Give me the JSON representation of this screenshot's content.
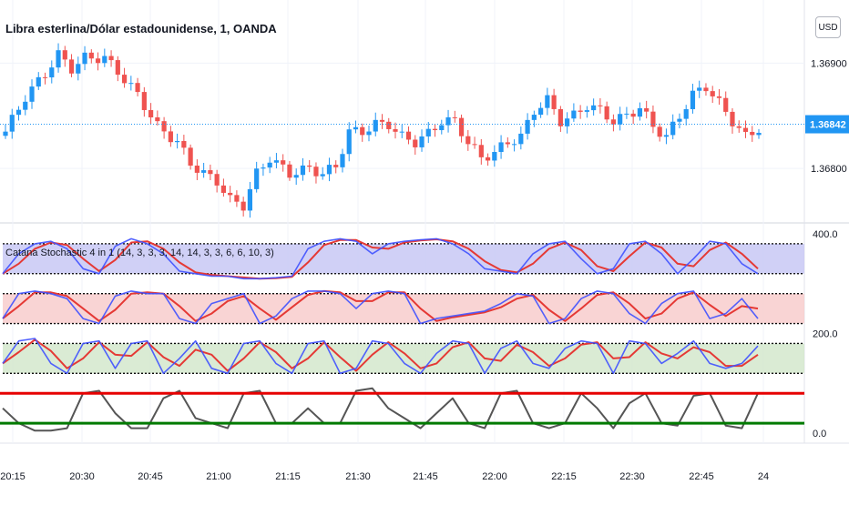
{
  "header": {
    "symbol_title": "Libra esterlina/Dólar estadounidense, 1, OANDA",
    "currency_button": "USD"
  },
  "indicator": {
    "title": "Catana Stochastic 4 in 1 (14, 3, 3, 3, 14, 14, 3, 3, 6, 6, 10, 3)"
  },
  "colors": {
    "up": "#2196f3",
    "down": "#ef5350",
    "last_price_bg": "#2196f3",
    "stoch_k": "#3f51ff",
    "stoch_d": "#e53935",
    "band_blue": "#c8c8f5",
    "band_red": "#f8cccc",
    "band_green": "#d3e8cc",
    "line_red": "#e60000",
    "line_green": "#007a00",
    "line_gray": "#555555"
  },
  "chart_data": [
    {
      "type": "candlestick",
      "title": "Libra esterlina/Dólar estadounidense, 1, OANDA",
      "x_ticks": [
        "20:15",
        "20:30",
        "20:45",
        "21:00",
        "21:15",
        "21:30",
        "21:45",
        "22:00",
        "22:15",
        "22:30",
        "22:45",
        "24"
      ],
      "y_ticks": [
        "1.36900",
        "1.36800"
      ],
      "ylim": [
        1.3675,
        1.3696
      ],
      "last_price": "1.36842",
      "close_path": [
        [
          0,
          1.36835
        ],
        [
          3,
          1.36868
        ],
        [
          6,
          1.3689
        ],
        [
          8,
          1.36908
        ],
        [
          10,
          1.36895
        ],
        [
          12,
          1.36905
        ],
        [
          15,
          1.36905
        ],
        [
          17,
          1.36892
        ],
        [
          20,
          1.3687
        ],
        [
          23,
          1.3684
        ],
        [
          26,
          1.36825
        ],
        [
          28,
          1.36805
        ],
        [
          30,
          1.36795
        ],
        [
          32,
          1.36788
        ],
        [
          34,
          1.3677
        ],
        [
          36,
          1.36765
        ],
        [
          38,
          1.36795
        ],
        [
          40,
          1.3681
        ],
        [
          43,
          1.36795
        ],
        [
          46,
          1.368
        ],
        [
          48,
          1.36795
        ],
        [
          50,
          1.36802
        ],
        [
          52,
          1.36835
        ],
        [
          54,
          1.36835
        ],
        [
          56,
          1.36842
        ],
        [
          58,
          1.36842
        ],
        [
          60,
          1.3683
        ],
        [
          62,
          1.36825
        ],
        [
          64,
          1.36833
        ],
        [
          66,
          1.36845
        ],
        [
          68,
          1.36845
        ],
        [
          70,
          1.36825
        ],
        [
          72,
          1.3681
        ],
        [
          74,
          1.36815
        ],
        [
          76,
          1.36825
        ],
        [
          78,
          1.3683
        ],
        [
          80,
          1.36855
        ],
        [
          82,
          1.36865
        ],
        [
          84,
          1.36845
        ],
        [
          86,
          1.3685
        ],
        [
          88,
          1.3686
        ],
        [
          90,
          1.36855
        ],
        [
          92,
          1.36845
        ],
        [
          94,
          1.3685
        ],
        [
          96,
          1.36858
        ],
        [
          98,
          1.3684
        ],
        [
          100,
          1.3683
        ],
        [
          102,
          1.3685
        ],
        [
          104,
          1.3687
        ],
        [
          106,
          1.36878
        ],
        [
          108,
          1.36862
        ],
        [
          110,
          1.36845
        ],
        [
          112,
          1.3683
        ],
        [
          114,
          1.36838
        ]
      ]
    },
    {
      "type": "line",
      "title": "Catana Stochastic 4 in 1 (14, 3, 3, 3, 14, 14, 3, 3, 6, 6, 10, 3)",
      "y_ticks": [
        "400.0",
        "200.0",
        "0.0"
      ],
      "ylim": [
        -20,
        420
      ],
      "levels": [
        {
          "low": 320,
          "high": 380,
          "fill": "blue"
        },
        {
          "low": 220,
          "high": 280,
          "fill": "red"
        },
        {
          "low": 120,
          "high": 180,
          "fill": "green"
        },
        {
          "value": 80,
          "color": "red"
        },
        {
          "value": 20,
          "color": "green"
        }
      ],
      "series": [
        {
          "base": 300,
          "k": [
            20,
            60,
            80,
            85,
            70,
            30,
            20,
            75,
            90,
            80,
            60,
            25,
            20,
            15,
            15,
            10,
            10,
            12,
            15,
            70,
            85,
            90,
            85,
            60,
            80,
            85,
            88,
            90,
            80,
            60,
            30,
            25,
            20,
            60,
            80,
            85,
            50,
            20,
            30,
            80,
            85,
            60,
            20,
            50,
            85,
            80,
            40,
            20
          ]
        },
        {
          "base": 200,
          "k": [
            30,
            80,
            85,
            80,
            70,
            30,
            20,
            75,
            85,
            80,
            80,
            30,
            20,
            60,
            70,
            80,
            20,
            35,
            70,
            85,
            85,
            80,
            50,
            80,
            85,
            80,
            20,
            30,
            35,
            40,
            45,
            60,
            80,
            75,
            20,
            30,
            70,
            85,
            80,
            40,
            20,
            60,
            80,
            85,
            30,
            40,
            70,
            30
          ]
        },
        {
          "base": 100,
          "k": [
            40,
            85,
            90,
            40,
            20,
            80,
            85,
            30,
            80,
            85,
            20,
            50,
            85,
            30,
            20,
            80,
            85,
            40,
            20,
            80,
            85,
            20,
            30,
            85,
            80,
            40,
            20,
            60,
            85,
            80,
            20,
            70,
            85,
            40,
            30,
            70,
            85,
            80,
            20,
            85,
            80,
            40,
            60,
            85,
            40,
            30,
            40,
            75
          ]
        },
        {
          "base": 0,
          "k": [
            50,
            20,
            5,
            5,
            10,
            80,
            85,
            40,
            10,
            10,
            70,
            85,
            30,
            20,
            10,
            80,
            85,
            20,
            20,
            50,
            20,
            20,
            85,
            90,
            50,
            30,
            10,
            40,
            70,
            20,
            10,
            80,
            85,
            20,
            10,
            20,
            80,
            50,
            10,
            60,
            80,
            20,
            15,
            75,
            80,
            15,
            10,
            80
          ]
        }
      ]
    }
  ]
}
